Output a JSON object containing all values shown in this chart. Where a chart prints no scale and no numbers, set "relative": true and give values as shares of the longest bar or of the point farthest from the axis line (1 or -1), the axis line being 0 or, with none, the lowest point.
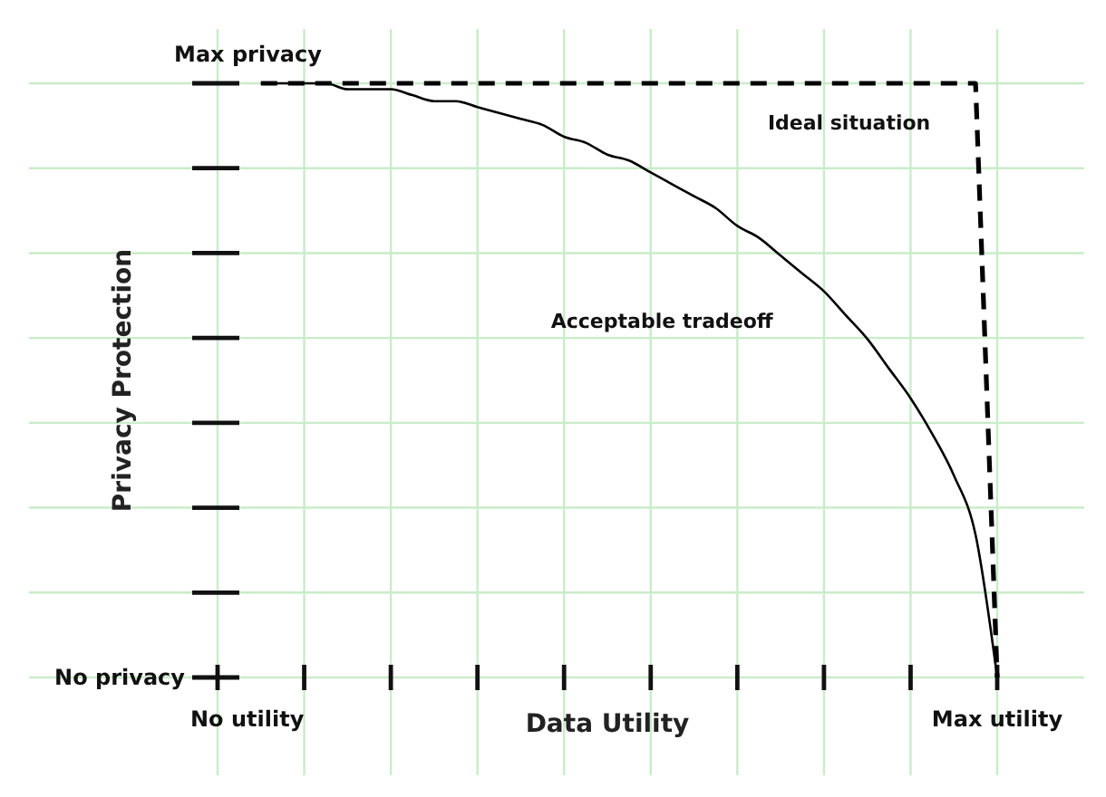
{
  "chart_data": {
    "type": "line",
    "xlabel": "Data Utility",
    "ylabel": "Privacy Protection",
    "relative": true,
    "grid": true,
    "categories": [
      null,
      null,
      null,
      null,
      null,
      null,
      null,
      null,
      null,
      null,
      null,
      null,
      null,
      null,
      null,
      null,
      null,
      null,
      null,
      null,
      null,
      null,
      null,
      null,
      null,
      null,
      null,
      null,
      null,
      null,
      null,
      null,
      null,
      null,
      null,
      null,
      null
    ],
    "series": [
      {
        "color": "#000000",
        "line_style": "solid",
        "values": [
          null,
          null,
          1,
          1.0,
          1.0,
          1.0,
          0.99,
          0.99,
          0.99,
          0.98,
          0.97,
          0.97,
          0.96,
          0.95,
          0.94,
          0.93,
          0.91,
          0.9,
          0.88,
          0.87,
          0.85,
          0.83,
          0.81,
          0.79,
          0.76,
          0.74,
          0.71,
          0.68,
          0.65,
          0.61,
          0.57,
          0.52,
          0.47,
          0.41,
          0.34,
          0.24,
          0
        ]
      },
      {
        "color": "#000000",
        "line_style": "dashed",
        "values": [
          null,
          null,
          1,
          1,
          1,
          1,
          1,
          1,
          1,
          1,
          1,
          1,
          1,
          1,
          1,
          1,
          1,
          1,
          1,
          1,
          1,
          1,
          1,
          1,
          1,
          1,
          1,
          1,
          1,
          1,
          1,
          1,
          1,
          1,
          1,
          1,
          0
        ]
      }
    ],
    "annotations": [
      "Max privacy",
      "No privacy",
      "No utility",
      "Max utility",
      "Ideal situation",
      "Acceptable tradeoff"
    ]
  }
}
